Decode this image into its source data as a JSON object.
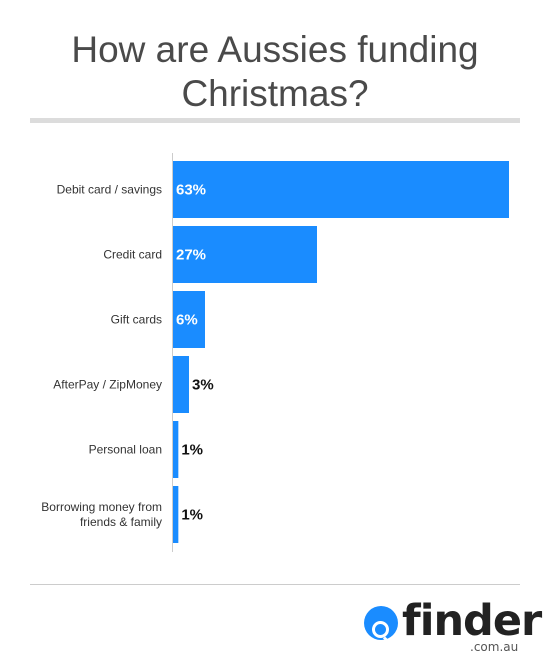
{
  "title_lines": [
    "How are Aussies funding",
    "Christmas?"
  ],
  "colors": {
    "bar": "#1a8cff",
    "axis": "#cccccc"
  },
  "chart_data": {
    "type": "bar",
    "orientation": "horizontal",
    "categories": [
      "Debit card / savings",
      "Credit card",
      "Gift cards",
      "AfterPay / ZipMoney",
      "Personal loan",
      "Borrowing money from friends & family"
    ],
    "values": [
      63,
      27,
      6,
      3,
      1,
      1
    ],
    "value_labels": [
      "63%",
      "27%",
      "6%",
      "3%",
      "1%",
      "1%"
    ],
    "unit": "%",
    "xlim": [
      0,
      63
    ],
    "grid": false,
    "legend": "none"
  },
  "logo": {
    "word": "finder",
    "domain": ".com.au",
    "icon": "magnifier-icon"
  }
}
